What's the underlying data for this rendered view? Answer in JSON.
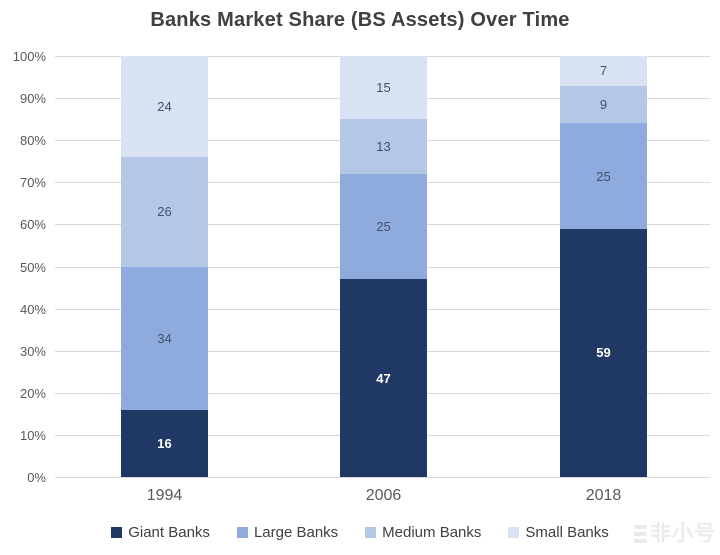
{
  "title": "Banks Market Share (BS Assets) Over Time",
  "chart_data": {
    "type": "bar",
    "stacked": true,
    "title": "Banks Market Share (BS Assets) Over Time",
    "categories": [
      "1994",
      "2006",
      "2018"
    ],
    "series": [
      {
        "name": "Giant Banks",
        "color": "#1F3864",
        "label_color": "#FFFFFF",
        "values": [
          16,
          47,
          59
        ]
      },
      {
        "name": "Large Banks",
        "color": "#8FAADC",
        "label_color": "#44506B",
        "values": [
          34,
          25,
          25
        ]
      },
      {
        "name": "Medium Banks",
        "color": "#B4C7E7",
        "label_color": "#44506B",
        "values": [
          26,
          13,
          9
        ]
      },
      {
        "name": "Small Banks",
        "color": "#D9E2F2",
        "label_color": "#44506B",
        "values": [
          24,
          15,
          7
        ]
      }
    ],
    "y_ticks": [
      "0%",
      "10%",
      "20%",
      "30%",
      "40%",
      "50%",
      "60%",
      "70%",
      "80%",
      "90%",
      "100%"
    ],
    "ylim": [
      0,
      100
    ],
    "grid": true,
    "legend_position": "bottom",
    "gridline_color": "#D9D9D9",
    "axis_label_color": "#595959",
    "legend_label_color": "#404040"
  },
  "watermark": {
    "text": "非小号"
  }
}
